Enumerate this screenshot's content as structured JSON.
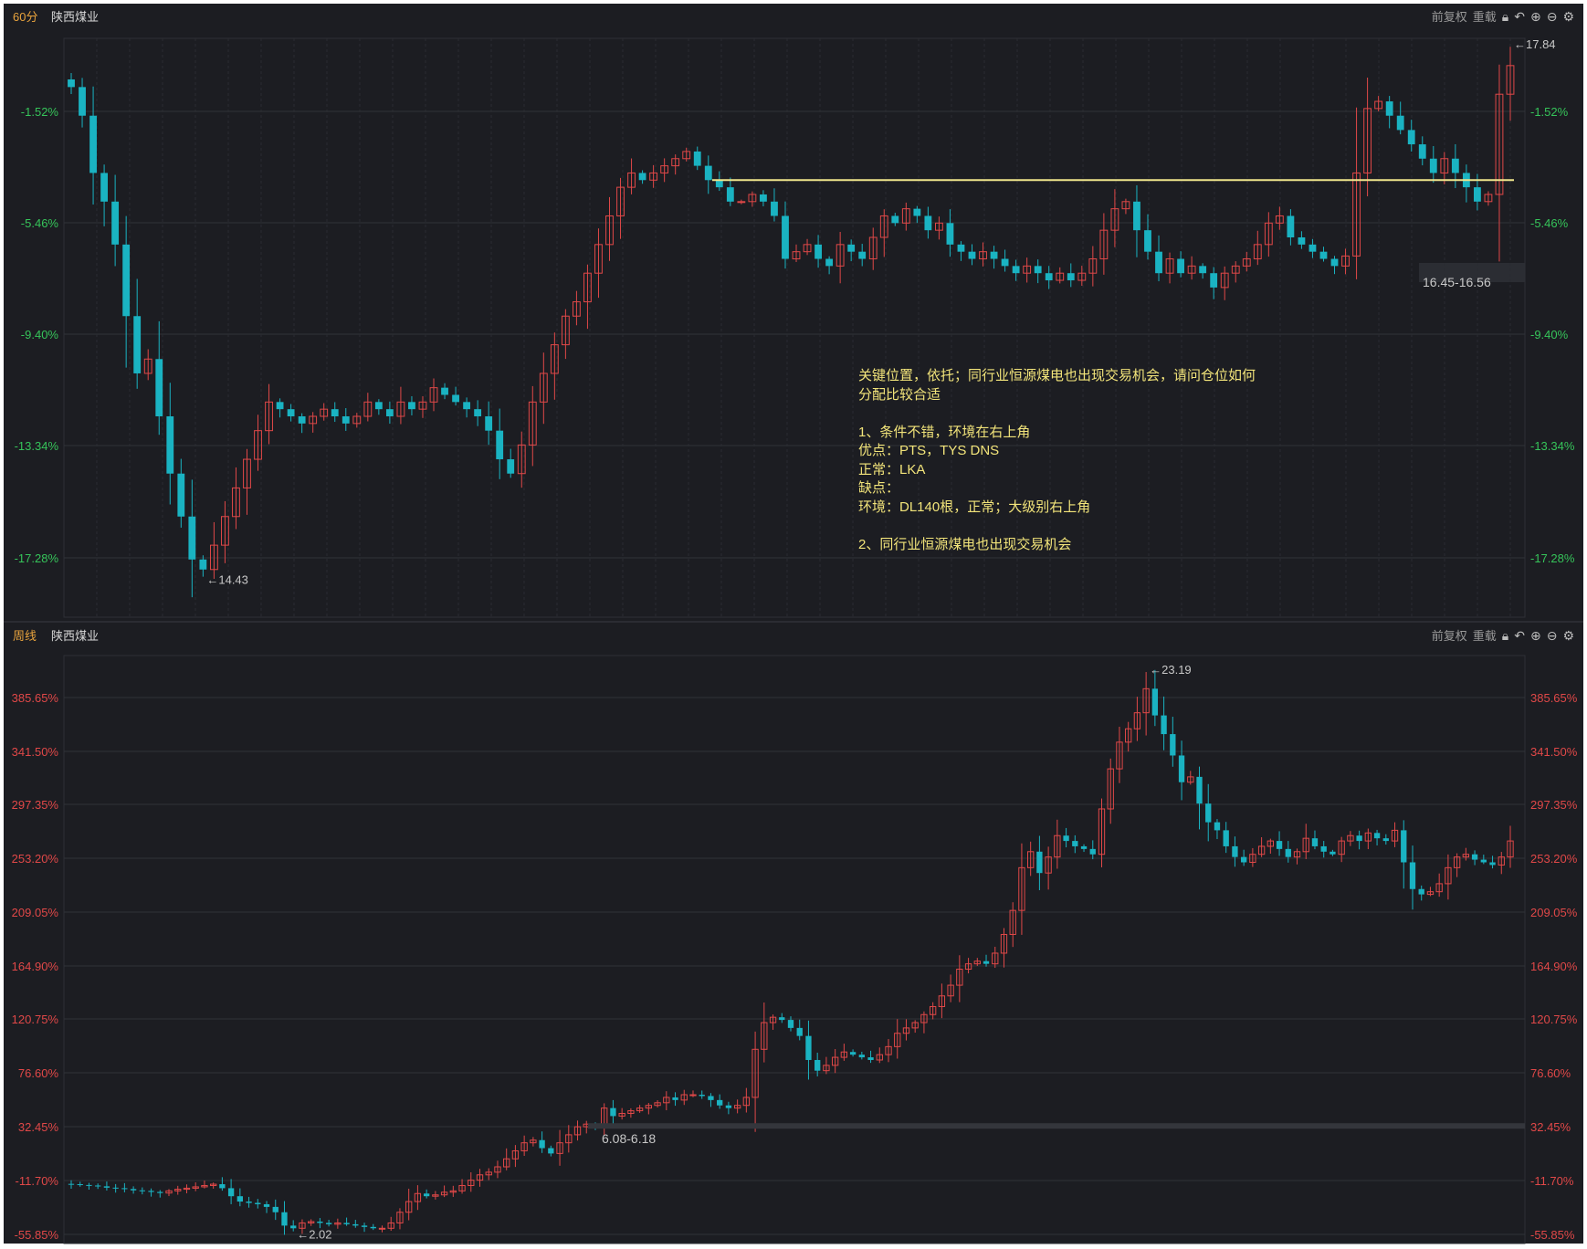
{
  "chart_data": [
    {
      "type": "candlestick",
      "period": "60分",
      "stock": "陕西煤业",
      "toolbar": {
        "adjust": "前复权",
        "reload": "重载"
      },
      "y_ticks": [
        "-1.52%",
        "-5.46%",
        "-9.40%",
        "-13.34%",
        "-17.28%"
      ],
      "max_label": "←17.84",
      "min_label": "←14.43",
      "range_label": "16.45-16.56",
      "support_line": {
        "color": "#f0e68c"
      },
      "annotation": "关键位置，依托；同行业恒源煤电也出现交易机会，请问仓位如何\n分配比较合适\n\n1、条件不错，环境在右上角\n优点：PTS，TYS DNS\n正常：LKA\n缺点：\n环境：DL140根，正常；大级别右上角\n\n2、同行业恒源煤电也出现交易机会",
      "closes": [
        17.8,
        17.6,
        17.2,
        17.0,
        16.7,
        16.2,
        15.8,
        15.9,
        15.5,
        15.1,
        14.8,
        14.5,
        14.43,
        14.6,
        14.8,
        15.0,
        15.2,
        15.4,
        15.6,
        15.55,
        15.5,
        15.45,
        15.5,
        15.55,
        15.5,
        15.45,
        15.5,
        15.6,
        15.55,
        15.5,
        15.6,
        15.55,
        15.6,
        15.7,
        15.65,
        15.6,
        15.55,
        15.5,
        15.4,
        15.2,
        15.1,
        15.3,
        15.6,
        15.8,
        16.0,
        16.2,
        16.3,
        16.5,
        16.7,
        16.9,
        17.1,
        17.2,
        17.15,
        17.2,
        17.25,
        17.3,
        17.35,
        17.25,
        17.15,
        17.1,
        17.0,
        17.0,
        17.05,
        17.0,
        16.9,
        16.6,
        16.65,
        16.7,
        16.6,
        16.55,
        16.7,
        16.65,
        16.6,
        16.75,
        16.9,
        16.85,
        16.95,
        16.9,
        16.8,
        16.85,
        16.7,
        16.65,
        16.6,
        16.65,
        16.6,
        16.55,
        16.5,
        16.55,
        16.5,
        16.45,
        16.5,
        16.45,
        16.5,
        16.6,
        16.8,
        16.95,
        17.0,
        16.8,
        16.65,
        16.5,
        16.6,
        16.5,
        16.55,
        16.5,
        16.4,
        16.5,
        16.55,
        16.6,
        16.7,
        16.85,
        16.9,
        16.75,
        16.7,
        16.65,
        16.6,
        16.55,
        16.62,
        17.2,
        17.65,
        17.7,
        17.6,
        17.5,
        17.4,
        17.3,
        17.2,
        17.3,
        17.2,
        17.1,
        17.0,
        17.05,
        17.75,
        17.95
      ]
    },
    {
      "type": "candlestick",
      "period": "周线",
      "stock": "陕西煤业",
      "toolbar": {
        "adjust": "前复权",
        "reload": "重载"
      },
      "y_ticks": [
        "385.65%",
        "341.50%",
        "297.35%",
        "253.20%",
        "209.05%",
        "164.90%",
        "120.75%",
        "76.60%",
        "32.45%",
        "-11.70%",
        "-55.85%"
      ],
      "max_label": "←23.19",
      "min_label": "←2.02",
      "range_label": "6.08-6.18",
      "closes": [
        3.95,
        3.92,
        3.9,
        3.87,
        3.82,
        3.8,
        3.77,
        3.72,
        3.7,
        3.66,
        3.62,
        3.7,
        3.76,
        3.8,
        3.85,
        3.9,
        3.95,
        3.8,
        3.5,
        3.3,
        3.25,
        3.2,
        3.1,
        2.9,
        2.4,
        2.3,
        2.5,
        2.55,
        2.5,
        2.45,
        2.5,
        2.45,
        2.4,
        2.35,
        2.3,
        2.3,
        2.5,
        2.9,
        3.3,
        3.6,
        3.5,
        3.55,
        3.65,
        3.7,
        3.9,
        4.1,
        4.3,
        4.4,
        4.6,
        4.9,
        5.2,
        5.5,
        5.6,
        5.3,
        5.1,
        5.5,
        5.8,
        6.1,
        6.2,
        6.15,
        6.8,
        6.5,
        6.6,
        6.7,
        6.8,
        6.9,
        7.0,
        7.2,
        7.1,
        7.3,
        7.3,
        7.25,
        7.1,
        6.9,
        6.8,
        6.9,
        7.2,
        9.0,
        10.0,
        10.2,
        10.1,
        9.8,
        9.5,
        8.6,
        8.2,
        8.4,
        8.7,
        8.9,
        8.8,
        8.7,
        8.6,
        8.8,
        9.1,
        9.6,
        9.8,
        10.0,
        10.3,
        10.6,
        11.0,
        11.4,
        12.0,
        12.2,
        12.3,
        12.2,
        12.6,
        13.3,
        14.2,
        15.8,
        16.4,
        15.6,
        16.2,
        17.0,
        16.8,
        16.6,
        16.5,
        16.3,
        18.0,
        19.5,
        20.5,
        21.0,
        21.6,
        22.5,
        21.5,
        20.8,
        20.0,
        19.0,
        19.2,
        18.2,
        17.5,
        17.2,
        16.6,
        16.2,
        16.0,
        16.3,
        16.6,
        16.8,
        16.5,
        16.2,
        16.4,
        16.9,
        16.6,
        16.4,
        16.3,
        16.8,
        17.0,
        16.8,
        17.1,
        16.9,
        16.8,
        17.2,
        16.0,
        15.0,
        14.8,
        14.9,
        15.2,
        15.8,
        16.2,
        16.3,
        16.1,
        16.0,
        15.9,
        16.2,
        16.8
      ]
    }
  ]
}
